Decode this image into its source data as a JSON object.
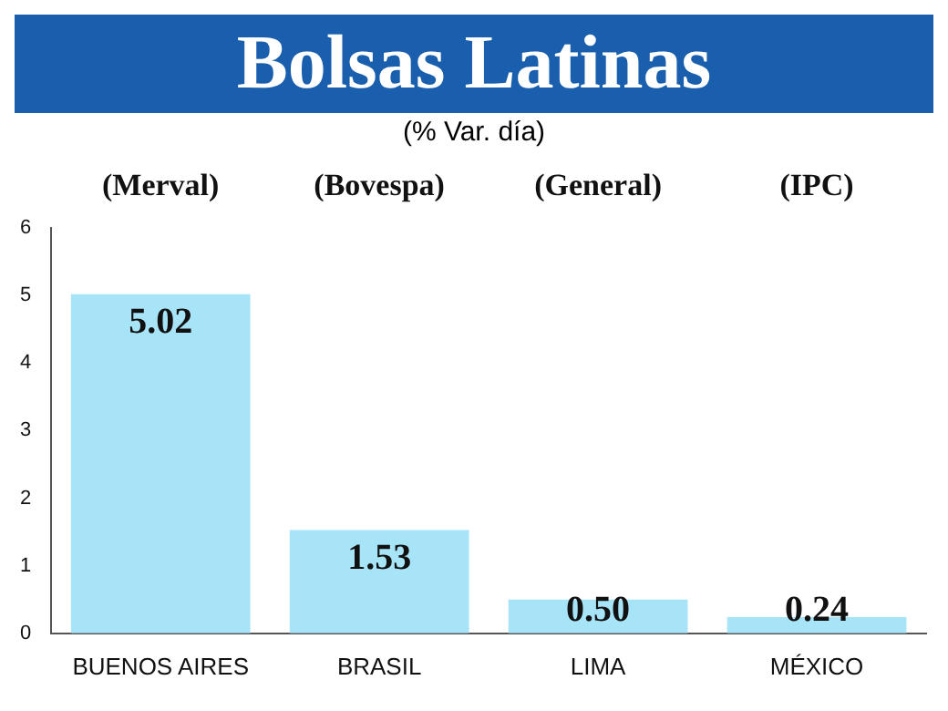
{
  "chart_data": {
    "type": "bar",
    "title": "Bolsas Latinas",
    "subtitle": "(% Var. día)",
    "categories": [
      "BUENOS AIRES",
      "BRASIL",
      "LIMA",
      "MÉXICO"
    ],
    "values": [
      5.02,
      1.53,
      0.5,
      0.24
    ],
    "value_labels": [
      "5.02",
      "1.53",
      "0.50",
      "0.24"
    ],
    "color": "#a8e4f8",
    "ylim": [
      0,
      6
    ],
    "yticks": [
      0,
      1,
      2,
      3,
      4,
      5,
      6
    ],
    "grid": false,
    "legend": false,
    "annotations": [
      "(Merval)",
      "(Bovespa)",
      "(General)",
      "(IPC)"
    ]
  }
}
